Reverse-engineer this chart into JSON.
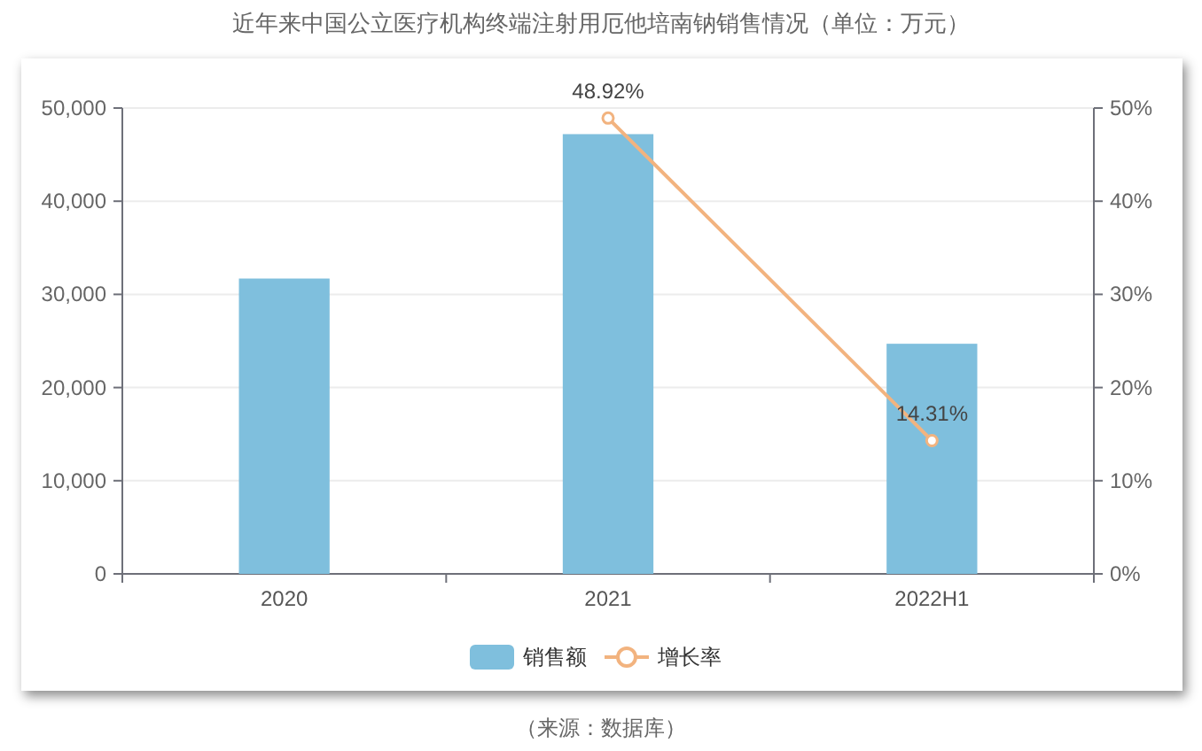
{
  "chart_data": {
    "type": "bar",
    "title": "近年来中国公立医疗机构终端注射用厄他培南钠销售情况（单位：万元）",
    "categories": [
      "2020",
      "2021",
      "2022H1"
    ],
    "series": [
      {
        "name": "销售额",
        "color": "#7fbfdd",
        "values": [
          31700,
          47200,
          24700
        ]
      },
      {
        "name": "增长率",
        "type": "line",
        "axis": "y2",
        "color": "#f2b37f",
        "marker": "circle",
        "values": [
          null,
          48.92,
          14.31
        ],
        "value_labels": [
          null,
          "48.92%",
          "14.31%"
        ]
      }
    ],
    "ylim": [
      0,
      50000
    ],
    "yticks": [
      0,
      {
        "value": 10000,
        "label": "10,000"
      },
      {
        "value": 20000,
        "label": "20,000"
      },
      {
        "value": 30000,
        "label": "30,000"
      },
      {
        "value": 40000,
        "label": "40,000"
      },
      {
        "value": 50000,
        "label": "50,000"
      }
    ],
    "y2lim": [
      0,
      50
    ],
    "y2ticks": [
      {
        "value": 0,
        "label": "0%"
      },
      {
        "value": 10,
        "label": "10%"
      },
      {
        "value": 20,
        "label": "20%"
      },
      {
        "value": 30,
        "label": "30%"
      },
      {
        "value": 40,
        "label": "40%"
      },
      {
        "value": 50,
        "label": "50%"
      }
    ],
    "grid": "y",
    "legend": "bottom",
    "annotations": [
      "（来源：数据库）"
    ]
  }
}
